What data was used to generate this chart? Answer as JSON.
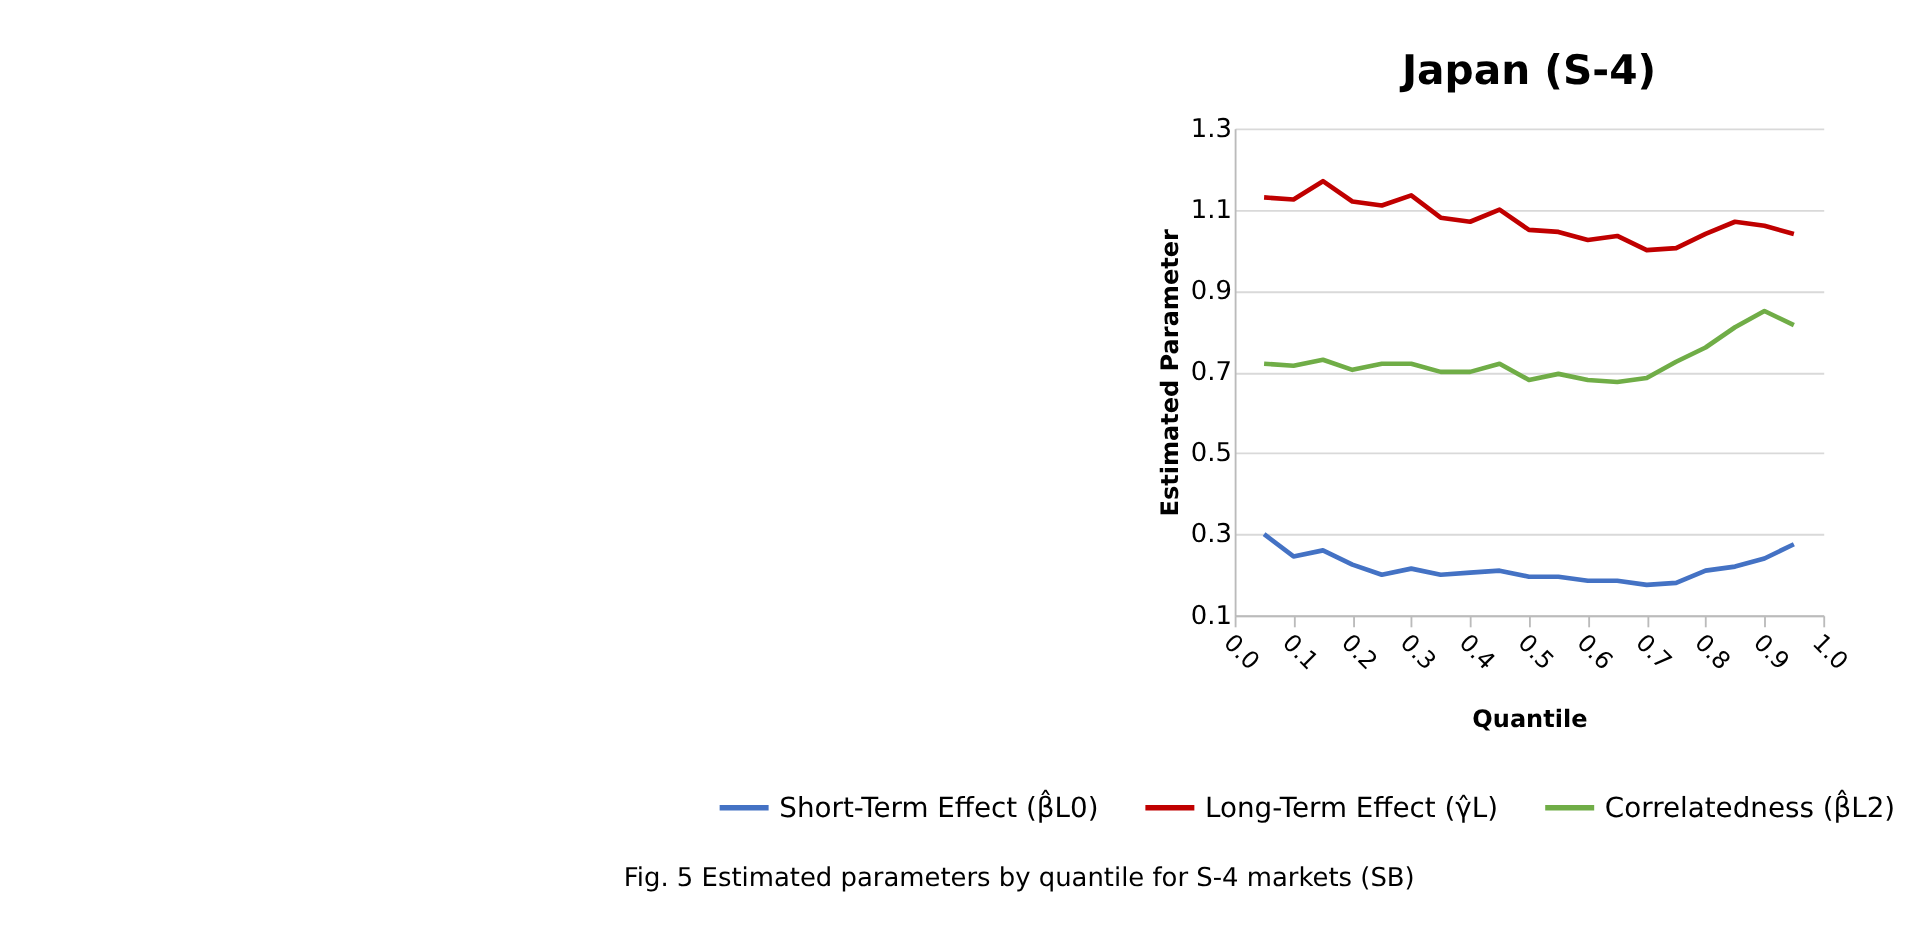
{
  "chart_data": {
    "type": "line",
    "title": "Japan (S-4)",
    "xlabel": "Quantile",
    "ylabel": "Estimated Parameter",
    "x": [
      0.05,
      0.1,
      0.15,
      0.2,
      0.25,
      0.3,
      0.35,
      0.4,
      0.45,
      0.5,
      0.55,
      0.6,
      0.65,
      0.7,
      0.75,
      0.8,
      0.85,
      0.9,
      0.95
    ],
    "series": [
      {
        "name": "Short-Term Effect (β̂L0)",
        "color": "#4472c4",
        "values": [
          0.3,
          0.245,
          0.26,
          0.225,
          0.2,
          0.215,
          0.2,
          0.205,
          0.21,
          0.195,
          0.195,
          0.185,
          0.185,
          0.175,
          0.18,
          0.21,
          0.22,
          0.24,
          0.275
        ]
      },
      {
        "name": "Long-Term Effect (γ̂L)",
        "color": "#c00000",
        "values": [
          1.13,
          1.125,
          1.17,
          1.12,
          1.11,
          1.135,
          1.08,
          1.07,
          1.1,
          1.05,
          1.045,
          1.025,
          1.035,
          1.0,
          1.005,
          1.04,
          1.07,
          1.06,
          1.04
        ]
      },
      {
        "name": "Correlatedness (β̂L2)",
        "color": "#70ad47",
        "values": [
          0.72,
          0.715,
          0.73,
          0.705,
          0.72,
          0.72,
          0.7,
          0.7,
          0.72,
          0.68,
          0.695,
          0.68,
          0.675,
          0.685,
          0.725,
          0.76,
          0.81,
          0.85,
          0.815
        ]
      }
    ],
    "xlim": [
      0,
      1
    ],
    "xticks": [
      {
        "value": 0,
        "label": "0.0"
      },
      0.1,
      0.2,
      0.3,
      0.4,
      0.5,
      0.6,
      0.7,
      0.8,
      0.9,
      {
        "value": 1,
        "label": "1.0"
      }
    ],
    "ylim": [
      0.1,
      1.3
    ],
    "yticks": [
      0.1,
      0.3,
      0.5,
      0.7,
      0.9,
      1.1,
      1.3
    ],
    "grid": "y",
    "legend": "bottom",
    "line_style": "solid",
    "marker": "none",
    "annotations": [
      "Fig. 5  Estimated parameters by quantile for S-4 markets (SB)"
    ]
  }
}
